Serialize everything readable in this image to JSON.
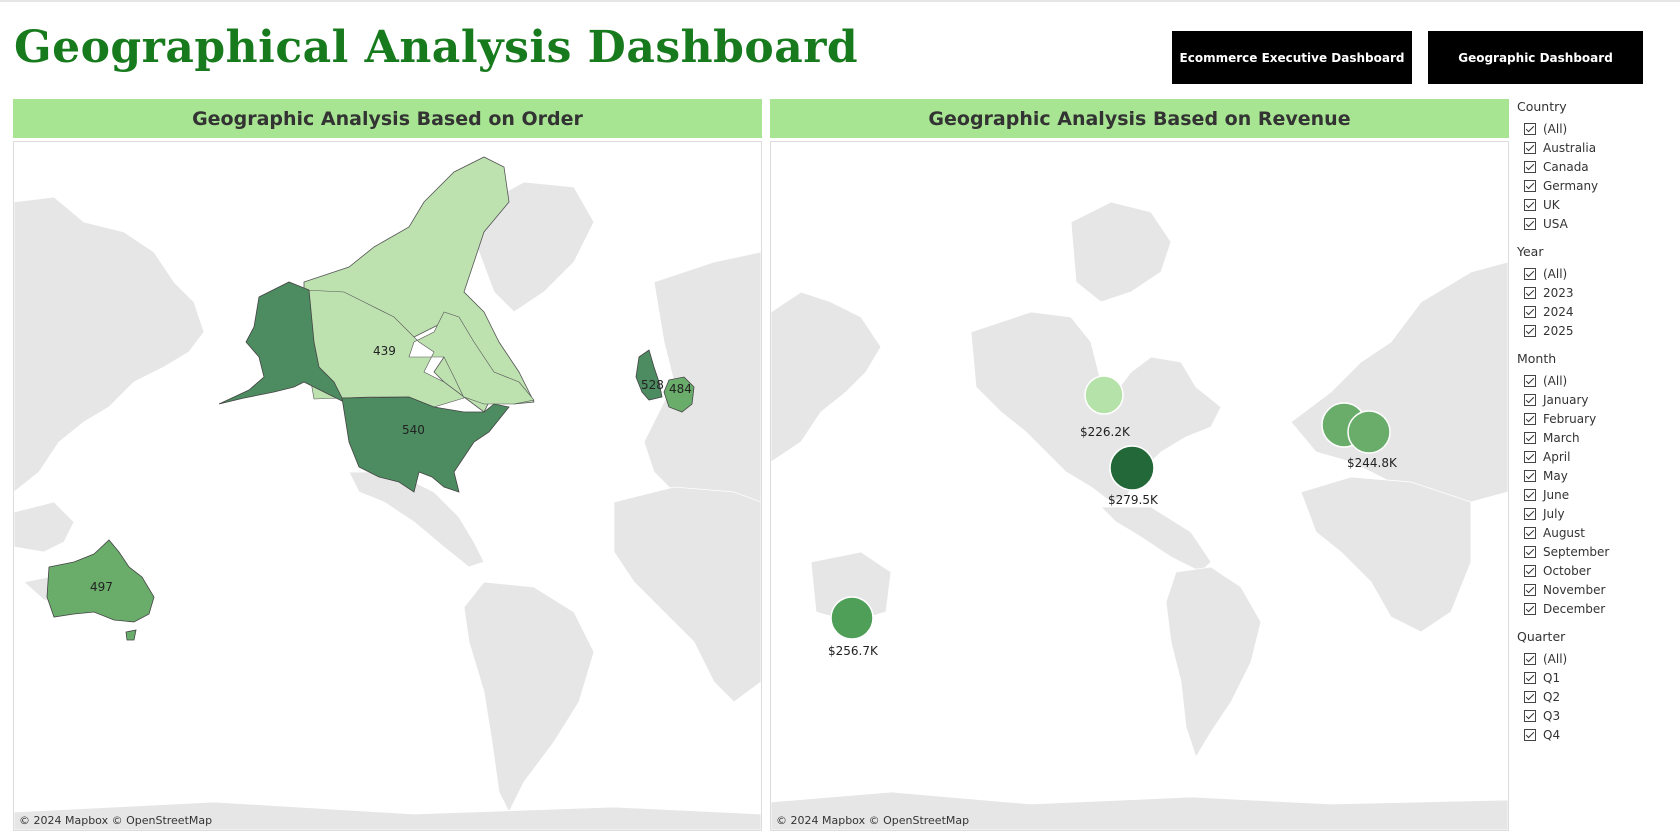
{
  "header": {
    "title": "Geographical Analysis Dashboard",
    "buttons": [
      "Ecommerce Executive Dashboard",
      "Geographic Dashboard"
    ]
  },
  "order_panel": {
    "title": "Geographic Analysis Based on Order",
    "attribution": "© 2024 Mapbox © OpenStreetMap",
    "labels": {
      "canada": "439",
      "usa": "540",
      "uk": "528",
      "germany": "484",
      "australia": "497"
    }
  },
  "revenue_panel": {
    "title": "Geographic Analysis Based on Revenue",
    "attribution": "© 2024 Mapbox © OpenStreetMap",
    "labels": {
      "canada": "$226.2K",
      "usa": "$279.5K",
      "europe": "$244.8K",
      "australia": "$256.7K"
    }
  },
  "filters": {
    "country": {
      "title": "Country",
      "items": [
        "(All)",
        "Australia",
        "Canada",
        "Germany",
        "UK",
        "USA"
      ]
    },
    "year": {
      "title": "Year",
      "items": [
        "(All)",
        "2023",
        "2024",
        "2025"
      ]
    },
    "month": {
      "title": "Month",
      "items": [
        "(All)",
        "January",
        "February",
        "March",
        "April",
        "May",
        "June",
        "July",
        "August",
        "September",
        "October",
        "November",
        "December"
      ]
    },
    "quarter": {
      "title": "Quarter",
      "items": [
        "(All)",
        "Q1",
        "Q2",
        "Q3",
        "Q4"
      ]
    }
  },
  "colors": {
    "title": "#177a1d",
    "panel_header": "#a7e592",
    "land": "#e6e6e6",
    "darkest_green": "#236838",
    "dark_green": "#4d8b60",
    "mid_green": "#6aad6b",
    "light_green": "#bde2b0",
    "lightest_green": "#b5e2a8"
  }
}
